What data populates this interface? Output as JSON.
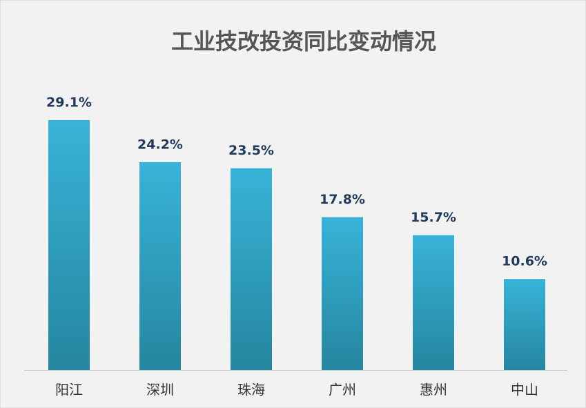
{
  "chart_data": {
    "type": "bar",
    "title": "工业技改投资同比变动情况",
    "categories": [
      "阳江",
      "深圳",
      "珠海",
      "广州",
      "惠州",
      "中山"
    ],
    "values": [
      29.1,
      24.2,
      23.5,
      17.8,
      15.7,
      10.6
    ],
    "value_labels": [
      "29.1%",
      "24.2%",
      "23.5%",
      "17.8%",
      "15.7%",
      "10.6%"
    ],
    "color": "#38b3d8"
  }
}
